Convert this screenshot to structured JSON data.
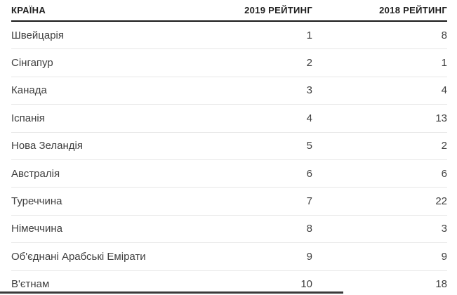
{
  "table": {
    "columns": [
      {
        "label": "КРАЇНА"
      },
      {
        "label": "2019 РЕЙТИНГ"
      },
      {
        "label": "2018 РЕЙТИНГ"
      }
    ],
    "rows": [
      {
        "country": "Швейцарія",
        "r2019": "1",
        "r2018": "8"
      },
      {
        "country": "Сінгапур",
        "r2019": "2",
        "r2018": "1"
      },
      {
        "country": "Канада",
        "r2019": "3",
        "r2018": "4"
      },
      {
        "country": "Іспанія",
        "r2019": "4",
        "r2018": "13"
      },
      {
        "country": "Нова Зеландія",
        "r2019": "5",
        "r2018": "2"
      },
      {
        "country": "Австралія",
        "r2019": "6",
        "r2018": "6"
      },
      {
        "country": "Туреччина",
        "r2019": "7",
        "r2018": "22"
      },
      {
        "country": "Німеччина",
        "r2019": "8",
        "r2018": "3"
      },
      {
        "country": "Об'єднані Арабські Емірати",
        "r2019": "9",
        "r2018": "9"
      },
      {
        "country": "В'єтнам",
        "r2019": "10",
        "r2018": "18"
      }
    ]
  },
  "chart_data": {
    "type": "table",
    "columns": [
      "КРАЇНА",
      "2019 РЕЙТИНГ",
      "2018 РЕЙТИНГ"
    ],
    "rows": [
      [
        "Швейцарія",
        1,
        8
      ],
      [
        "Сінгапур",
        2,
        1
      ],
      [
        "Канада",
        3,
        4
      ],
      [
        "Іспанія",
        4,
        13
      ],
      [
        "Нова Зеландія",
        5,
        2
      ],
      [
        "Австралія",
        6,
        6
      ],
      [
        "Туреччина",
        7,
        22
      ],
      [
        "Німеччина",
        8,
        3
      ],
      [
        "Об'єднані Арабські Емірати",
        9,
        9
      ],
      [
        "В'єтнам",
        10,
        18
      ]
    ]
  },
  "colors": {
    "header_border": "#1a1a1a",
    "row_divider": "#e7e7e7",
    "scrollbar_thumb": "#3a3a3a"
  }
}
